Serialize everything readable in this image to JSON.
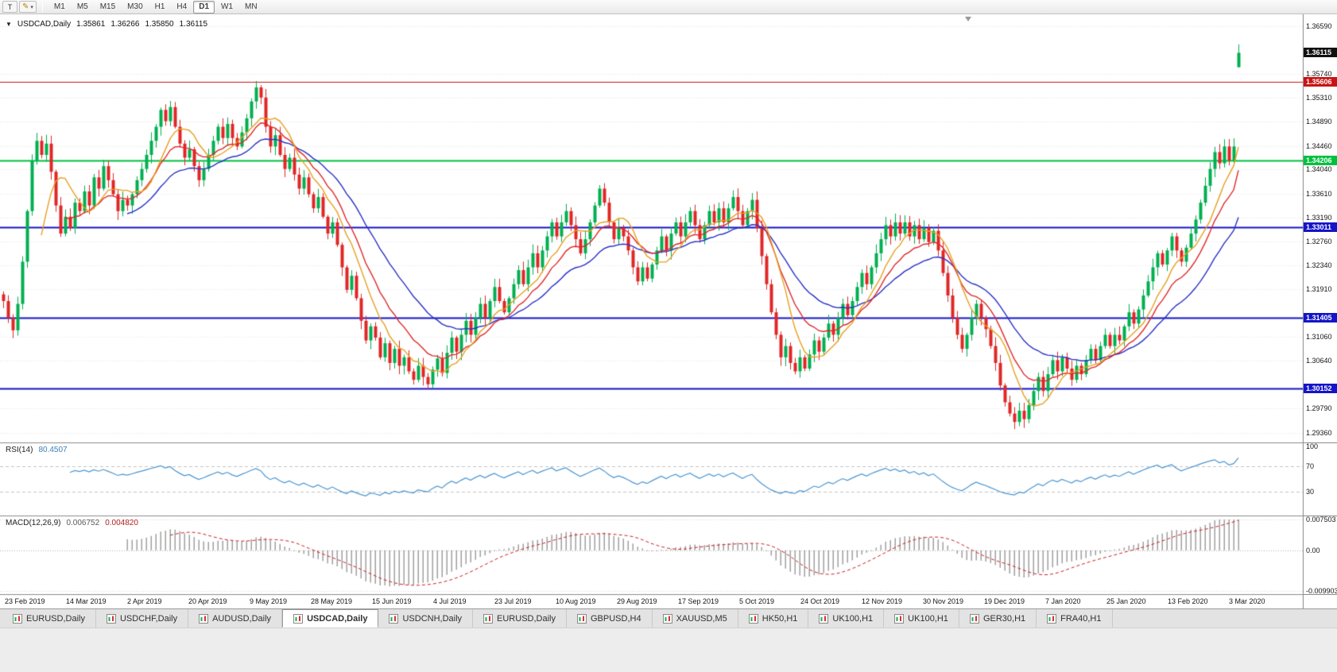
{
  "toolbar": {
    "tools": [
      {
        "name": "templates",
        "glyph": "T"
      },
      {
        "name": "drawings",
        "glyph": "✎"
      }
    ],
    "timeframes": [
      {
        "label": "M1",
        "active": false
      },
      {
        "label": "M5",
        "active": false
      },
      {
        "label": "M15",
        "active": false
      },
      {
        "label": "M30",
        "active": false
      },
      {
        "label": "H1",
        "active": false
      },
      {
        "label": "H4",
        "active": false
      },
      {
        "label": "D1",
        "active": true
      },
      {
        "label": "W1",
        "active": false
      },
      {
        "label": "MN",
        "active": false
      }
    ]
  },
  "chart": {
    "header": {
      "symbol": "USDCAD,Daily",
      "open": "1.35861",
      "high": "1.36266",
      "low": "1.35850",
      "close": "1.36115"
    },
    "colors": {
      "bull": "#00b050",
      "bear": "#e02626",
      "grid": "#e7e7e7",
      "divider": "#8c8c8c",
      "border": "#8c8c8c",
      "background": "#ffffff"
    },
    "price_axis": {
      "min": 1.292,
      "max": 1.368,
      "ticks": [
        "1.36590",
        "1.35740",
        "1.35310",
        "1.34890",
        "1.34460",
        "1.34040",
        "1.33610",
        "1.33190",
        "1.32760",
        "1.32340",
        "1.31910",
        "1.31060",
        "1.30640",
        "1.29790",
        "1.29360"
      ]
    },
    "current_price": {
      "label": "1.36115",
      "value": 1.36115,
      "color": "#111111"
    },
    "hlines": [
      {
        "label": "1.35606",
        "value": 1.35606,
        "color": "#c81414",
        "thickness": 1
      },
      {
        "label": "1.34206",
        "value": 1.34206,
        "color": "#00c040",
        "thickness": 2
      },
      {
        "label": "1.33011",
        "value": 1.33011,
        "color": "#1414c8",
        "thickness": 2
      },
      {
        "label": "1.31405",
        "value": 1.31405,
        "color": "#1414c8",
        "thickness": 2
      },
      {
        "label": "1.30152",
        "value": 1.30152,
        "color": "#1414c8",
        "thickness": 2
      }
    ],
    "ma": [
      {
        "type": "ema",
        "period": 26,
        "color": "#2830c8"
      },
      {
        "type": "ema",
        "period": 13,
        "color": "#e02828"
      },
      {
        "type": "sma",
        "period": 8,
        "color": "#e8a020"
      }
    ],
    "closes": [
      1.317,
      1.314,
      1.3118,
      1.3165,
      1.324,
      1.333,
      1.342,
      1.3455,
      1.343,
      1.345,
      1.34,
      1.334,
      1.329,
      1.332,
      1.33,
      1.3345,
      1.333,
      1.3365,
      1.334,
      1.339,
      1.337,
      1.341,
      1.3385,
      1.336,
      1.333,
      1.335,
      1.334,
      1.336,
      1.3385,
      1.3405,
      1.343,
      1.3455,
      1.348,
      1.351,
      1.349,
      1.3515,
      1.348,
      1.345,
      1.3425,
      1.344,
      1.341,
      1.3385,
      1.3405,
      1.343,
      1.3455,
      1.348,
      1.346,
      1.3485,
      1.346,
      1.3445,
      1.347,
      1.3495,
      1.3525,
      1.355,
      1.3532,
      1.348,
      1.3445,
      1.3465,
      1.343,
      1.3405,
      1.3425,
      1.3395,
      1.337,
      1.339,
      1.336,
      1.3335,
      1.3355,
      1.332,
      1.329,
      1.331,
      1.327,
      1.323,
      1.319,
      1.3215,
      1.3175,
      1.3135,
      1.31,
      1.3125,
      1.3105,
      1.307,
      1.3095,
      1.306,
      1.3085,
      1.3055,
      1.307,
      1.3045,
      1.303,
      1.3055,
      1.3035,
      1.3022,
      1.3048,
      1.3068,
      1.3042,
      1.3078,
      1.3105,
      1.308,
      1.311,
      1.3135,
      1.311,
      1.314,
      1.3165,
      1.314,
      1.317,
      1.3195,
      1.317,
      1.315,
      1.3175,
      1.32,
      1.3225,
      1.32,
      1.323,
      1.3255,
      1.323,
      1.326,
      1.3285,
      1.331,
      1.3285,
      1.331,
      1.333,
      1.3305,
      1.328,
      1.3255,
      1.328,
      1.331,
      1.334,
      1.337,
      1.3345,
      1.331,
      1.328,
      1.33,
      1.3285,
      1.326,
      1.323,
      1.3205,
      1.323,
      1.321,
      1.3235,
      1.326,
      1.3285,
      1.326,
      1.329,
      1.331,
      1.3285,
      1.331,
      1.333,
      1.3305,
      1.328,
      1.3305,
      1.333,
      1.331,
      1.3335,
      1.331,
      1.3335,
      1.3355,
      1.333,
      1.3305,
      1.333,
      1.335,
      1.33,
      1.325,
      1.32,
      1.315,
      1.311,
      1.307,
      1.309,
      1.306,
      1.3045,
      1.307,
      1.305,
      1.3075,
      1.31,
      1.308,
      1.3105,
      1.313,
      1.311,
      1.314,
      1.3165,
      1.3145,
      1.317,
      1.3195,
      1.322,
      1.32,
      1.323,
      1.3255,
      1.328,
      1.3305,
      1.3285,
      1.331,
      1.329,
      1.331,
      1.3285,
      1.3305,
      1.328,
      1.33,
      1.3275,
      1.3295,
      1.326,
      1.322,
      1.318,
      1.314,
      1.311,
      1.3085,
      1.311,
      1.314,
      1.3165,
      1.314,
      1.312,
      1.309,
      1.306,
      1.302,
      1.299,
      1.297,
      1.2955,
      1.2975,
      1.296,
      1.2985,
      1.301,
      1.3035,
      1.301,
      1.304,
      1.3065,
      1.3045,
      1.307,
      1.305,
      1.303,
      1.3055,
      1.304,
      1.3065,
      1.3085,
      1.3065,
      1.309,
      1.311,
      1.309,
      1.311,
      1.31,
      1.3125,
      1.315,
      1.313,
      1.3155,
      1.318,
      1.3205,
      1.323,
      1.3255,
      1.3235,
      1.326,
      1.3285,
      1.326,
      1.324,
      1.3265,
      1.329,
      1.3315,
      1.3345,
      1.3375,
      1.3405,
      1.3435,
      1.3415,
      1.3445,
      1.342,
      1.3445
    ],
    "last_candle": {
      "o": 1.35861,
      "h": 1.36266,
      "l": 1.3585,
      "c": 1.36115
    }
  },
  "rsi": {
    "name": "RSI(14)",
    "value": "80.4507",
    "period": 14,
    "color": "#4a96d2",
    "levels": [
      {
        "label": "100",
        "value": 100
      },
      {
        "label": "70",
        "value": 70
      },
      {
        "label": "30",
        "value": 30
      }
    ],
    "guide_values": [
      70,
      30
    ]
  },
  "macd": {
    "name": "MACD(12,26,9)",
    "main_value": "0.006752",
    "signal_value": "0.004820",
    "fast": 12,
    "slow": 26,
    "signal": 9,
    "hist_color": "#a0a0a0",
    "signal_color": "#cc2020",
    "axis": [
      {
        "label": "0.007503",
        "value": 0.007503
      },
      {
        "label": "0.00",
        "value": 0
      },
      {
        "label": "-0.009903",
        "value": -0.009903
      }
    ]
  },
  "date_axis": {
    "labels": [
      "23 Feb 2019",
      "14 Mar 2019",
      "2 Apr 2019",
      "20 Apr 2019",
      "9 May 2019",
      "28 May 2019",
      "15 Jun 2019",
      "4 Jul 2019",
      "23 Jul 2019",
      "10 Aug 2019",
      "29 Aug 2019",
      "17 Sep 2019",
      "5 Oct 2019",
      "24 Oct 2019",
      "12 Nov 2019",
      "30 Nov 2019",
      "19 Dec 2019",
      "7 Jan 2020",
      "25 Jan 2020",
      "13 Feb 2020",
      "3 Mar 2020"
    ]
  },
  "tabs": [
    {
      "label": "EURUSD,Daily",
      "active": false
    },
    {
      "label": "USDCHF,Daily",
      "active": false
    },
    {
      "label": "AUDUSD,Daily",
      "active": false
    },
    {
      "label": "USDCAD,Daily",
      "active": true
    },
    {
      "label": "USDCNH,Daily",
      "active": false
    },
    {
      "label": "EURUSD,Daily",
      "active": false
    },
    {
      "label": "GBPUSD,H4",
      "active": false
    },
    {
      "label": "XAUUSD,M5",
      "active": false
    },
    {
      "label": "HK50,H1",
      "active": false
    },
    {
      "label": "UK100,H1",
      "active": false
    },
    {
      "label": "UK100,H1",
      "active": false
    },
    {
      "label": "GER30,H1",
      "active": false
    },
    {
      "label": "FRA40,H1",
      "active": false
    }
  ]
}
